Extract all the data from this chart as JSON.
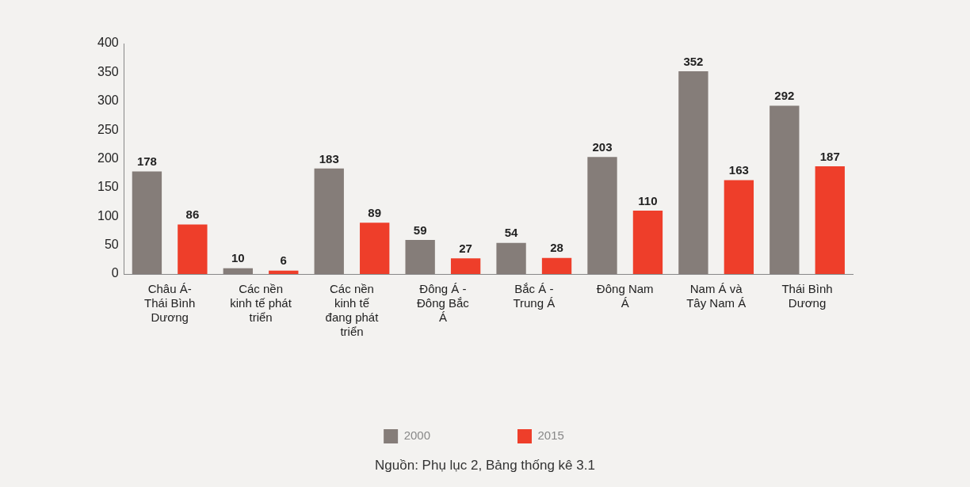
{
  "chart_data": {
    "type": "bar",
    "categories": [
      "Châu Á- Thái Bình Dương",
      "Các nền kinh tế phát triển",
      "Các nền kinh tế đang phát triển",
      "Đông Á - Đông Bắc Á",
      "Bắc Á - Trung Á",
      "Đông Nam Á",
      "Nam Á và Tây Nam Á",
      "Thái Bình Dương"
    ],
    "series": [
      {
        "name": "2000",
        "color": "#857d79",
        "values": [
          178,
          10,
          183,
          59,
          54,
          203,
          352,
          292
        ]
      },
      {
        "name": "2015",
        "color": "#ee3e2a",
        "values": [
          86,
          6,
          89,
          27,
          28,
          110,
          163,
          187
        ]
      }
    ],
    "ylim": [
      0,
      400
    ],
    "yticks": [
      0,
      50,
      100,
      150,
      200,
      250,
      300,
      350,
      400
    ],
    "grid": false,
    "legend": "bottom",
    "data_labels": true,
    "annotations": [
      "Nguồn: Phụ lục 2, Bảng thống kê 3.1"
    ]
  }
}
